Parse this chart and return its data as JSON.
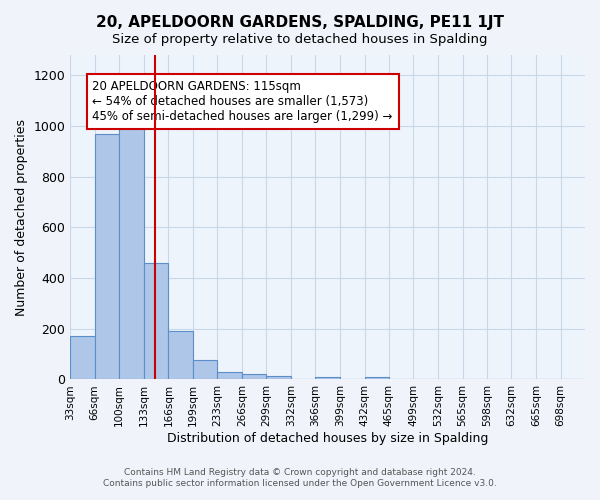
{
  "title": "20, APELDOORN GARDENS, SPALDING, PE11 1JT",
  "subtitle": "Size of property relative to detached houses in Spalding",
  "xlabel": "Distribution of detached houses by size in Spalding",
  "ylabel": "Number of detached properties",
  "bar_labels": [
    "33sqm",
    "66sqm",
    "100sqm",
    "133sqm",
    "166sqm",
    "199sqm",
    "233sqm",
    "266sqm",
    "299sqm",
    "332sqm",
    "366sqm",
    "399sqm",
    "432sqm",
    "465sqm",
    "499sqm",
    "532sqm",
    "565sqm",
    "598sqm",
    "632sqm",
    "665sqm",
    "698sqm"
  ],
  "bar_values": [
    170,
    970,
    1000,
    460,
    190,
    75,
    28,
    20,
    15,
    0,
    10,
    0,
    10,
    0,
    0,
    0,
    0,
    0,
    0,
    0,
    0
  ],
  "bar_color": "#aec6e8",
  "bar_edge_color": "#5b8fc9",
  "property_line_x": 115,
  "property_sqm": 115,
  "red_line_color": "#cc0000",
  "annotation_text_line1": "20 APELDOORN GARDENS: 115sqm",
  "annotation_text_line2": "← 54% of detached houses are smaller (1,573)",
  "annotation_text_line3": "45% of semi-detached houses are larger (1,299) →",
  "annotation_box_color": "#ffffff",
  "annotation_box_edge_color": "#cc0000",
  "ylim": [
    0,
    1280
  ],
  "yticks": [
    0,
    200,
    400,
    600,
    800,
    1000,
    1200
  ],
  "grid_color": "#c8d8e8",
  "bg_color": "#eef4fb",
  "footer_line1": "Contains HM Land Registry data © Crown copyright and database right 2024.",
  "footer_line2": "Contains public sector information licensed under the Open Government Licence v3.0."
}
